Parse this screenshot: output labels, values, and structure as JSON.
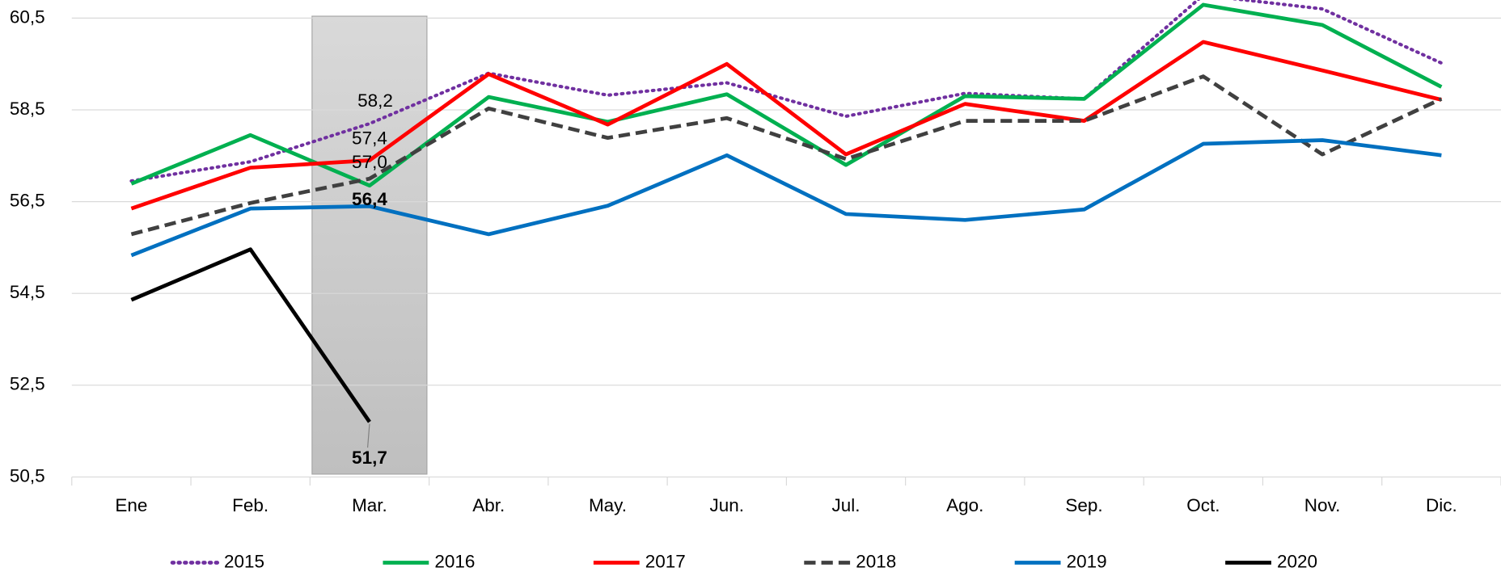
{
  "chart_data": {
    "type": "line",
    "categories": [
      "Ene",
      "Feb.",
      "Mar.",
      "Abr.",
      "May.",
      "Jun.",
      "Jul.",
      "Ago.",
      "Sep.",
      "Oct.",
      "Nov.",
      "Dic."
    ],
    "ylim": [
      50.5,
      60.5
    ],
    "yticks": [
      {
        "value": 50.5,
        "label": "50,5"
      },
      {
        "value": 52.5,
        "label": "52,5"
      },
      {
        "value": 54.5,
        "label": "54,5"
      },
      {
        "value": 56.5,
        "label": "56,5"
      },
      {
        "value": 58.5,
        "label": "58,5"
      },
      {
        "value": 60.5,
        "label": "60,5"
      }
    ],
    "grid": true,
    "legend": "bottom",
    "series": [
      {
        "name": "2015",
        "color": "#7030a0",
        "style": "dotted",
        "values": [
          56.95,
          57.37,
          58.2,
          59.3,
          58.82,
          59.09,
          58.36,
          58.86,
          58.74,
          61.0,
          60.7,
          59.52
        ],
        "value_labels": [
          null,
          null,
          "58,2",
          null,
          null,
          null,
          null,
          null,
          null,
          null,
          null,
          null
        ]
      },
      {
        "name": "2016",
        "color": "#00b050",
        "style": "solid",
        "values": [
          56.89,
          57.95,
          56.85,
          58.78,
          58.24,
          58.84,
          57.3,
          58.8,
          58.74,
          60.79,
          60.35,
          59.0
        ]
      },
      {
        "name": "2017",
        "color": "#ff0000",
        "style": "solid",
        "values": [
          56.35,
          57.24,
          57.4,
          59.28,
          58.18,
          59.5,
          57.53,
          58.63,
          58.26,
          59.98,
          59.36,
          58.72
        ],
        "value_labels": [
          null,
          null,
          "57,4",
          null,
          null,
          null,
          null,
          null,
          null,
          null,
          null,
          null
        ]
      },
      {
        "name": "2018",
        "color": "#404040",
        "style": "dashed",
        "values": [
          55.79,
          56.47,
          57.0,
          58.53,
          57.89,
          58.32,
          57.43,
          58.26,
          58.26,
          59.23,
          57.53,
          58.74
        ],
        "value_labels": [
          null,
          null,
          "57,0",
          null,
          null,
          null,
          null,
          null,
          null,
          null,
          null,
          null
        ]
      },
      {
        "name": "2019",
        "color": "#0070c0",
        "style": "solid",
        "values": [
          55.33,
          56.35,
          56.4,
          55.79,
          56.41,
          57.51,
          56.23,
          56.1,
          56.33,
          57.76,
          57.84,
          57.51
        ],
        "value_labels": [
          null,
          null,
          "56,4",
          null,
          null,
          null,
          null,
          null,
          null,
          null,
          null,
          null
        ]
      },
      {
        "name": "2020",
        "color": "#000000",
        "style": "solid",
        "values": [
          54.36,
          55.46,
          51.7,
          null,
          null,
          null,
          null,
          null,
          null,
          null,
          null,
          null
        ],
        "value_labels": [
          null,
          null,
          "51,7",
          null,
          null,
          null,
          null,
          null,
          null,
          null,
          null,
          null
        ]
      }
    ]
  }
}
